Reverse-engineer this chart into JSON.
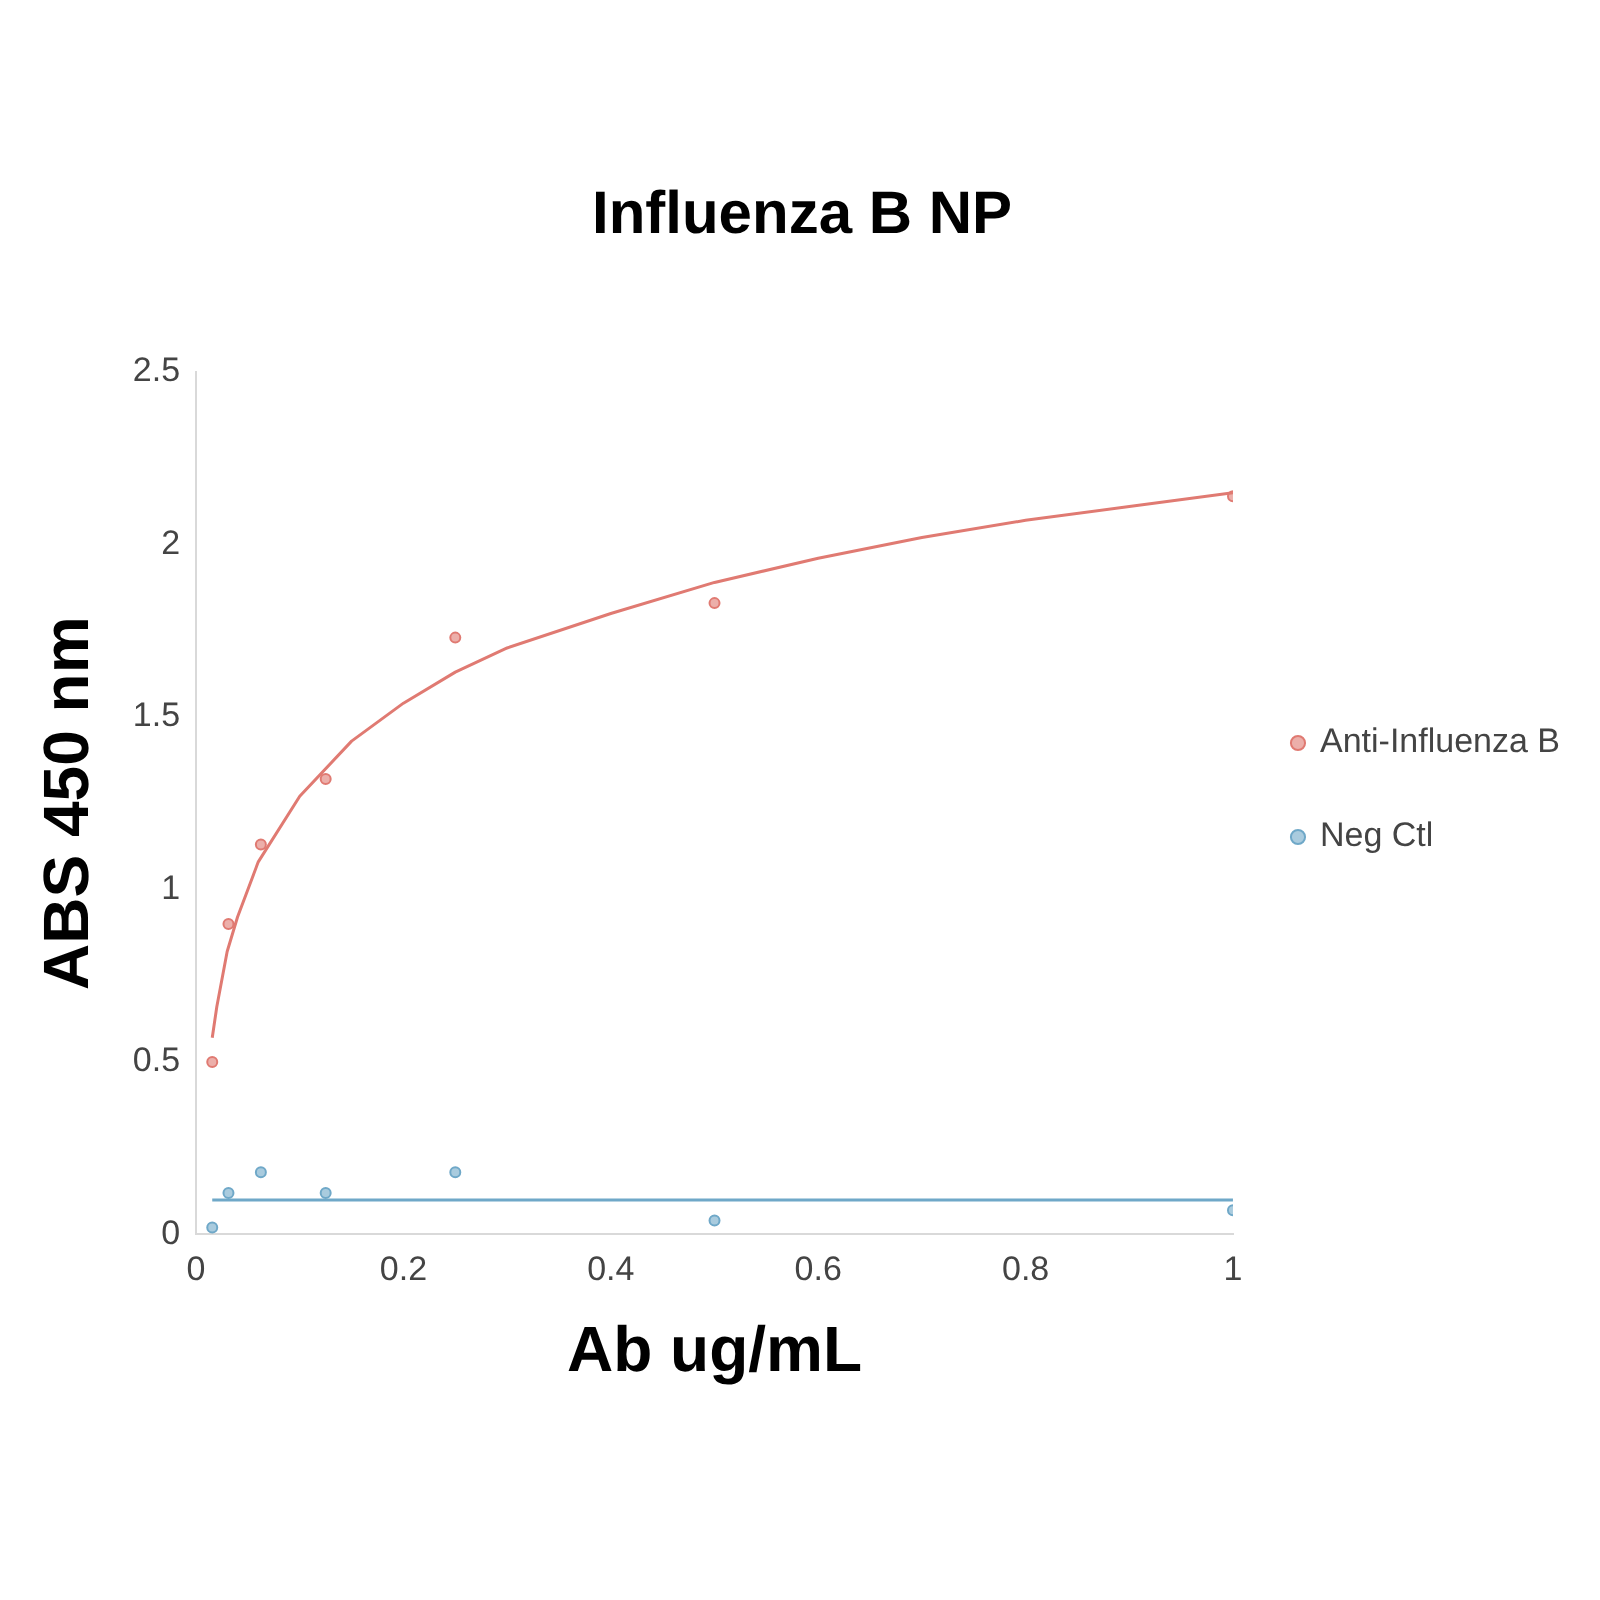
{
  "chart_data": {
    "type": "scatter",
    "title": "Influenza B NP",
    "xlabel": "Ab ug/mL",
    "ylabel": "ABS 450 nm",
    "xlim": [
      0,
      1
    ],
    "xticks": [
      0,
      0.2,
      0.4,
      0.6,
      0.8,
      1
    ],
    "ylim": [
      0,
      2.5
    ],
    "yticks": [
      0,
      0.5,
      1,
      1.5,
      2,
      2.5
    ],
    "grid": false,
    "legend": "right",
    "series": [
      {
        "name": "Anti-Influenza B",
        "marker": "circle",
        "color": "#e07a72",
        "x": [
          0.0156,
          0.03125,
          0.0625,
          0.125,
          0.25,
          0.5,
          1
        ],
        "values": [
          0.5,
          0.9,
          1.13,
          1.32,
          1.73,
          1.83,
          2.14
        ]
      },
      {
        "name": "Neg Ctl",
        "marker": "circle",
        "color": "#6fa8c8",
        "x": [
          0.0156,
          0.03125,
          0.0625,
          0.125,
          0.25,
          0.5,
          1
        ],
        "values": [
          0.02,
          0.12,
          0.18,
          0.12,
          0.18,
          0.04,
          0.07
        ]
      },
      {
        "type": "line",
        "marker": "none",
        "color": "#e07a72",
        "x": [
          0.0156,
          0.02,
          0.03,
          0.04,
          0.06,
          0.1,
          0.15,
          0.2,
          0.25,
          0.3,
          0.4,
          0.5,
          0.6,
          0.7,
          0.8,
          0.9,
          1
        ],
        "values": [
          0.57,
          0.66,
          0.82,
          0.92,
          1.08,
          1.27,
          1.43,
          1.54,
          1.63,
          1.7,
          1.8,
          1.89,
          1.96,
          2.02,
          2.07,
          2.11,
          2.15
        ]
      },
      {
        "type": "line",
        "marker": "none",
        "color": "#6fa8c8",
        "x": [
          0.0156,
          1
        ],
        "values": [
          0.1,
          0.1
        ]
      }
    ]
  }
}
